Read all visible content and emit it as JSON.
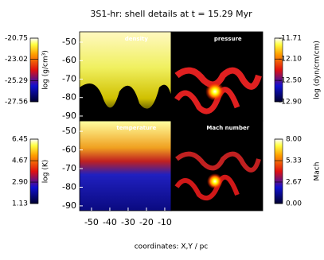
{
  "figure": {
    "title": "3S1-hr: shell details at t = 15.29 Myr",
    "x_label": "coordinates: X,Y / pc",
    "xlim": [
      -56.5,
      -6.5
    ],
    "xticks": [
      -50,
      -40,
      -30,
      -20,
      -10
    ],
    "ylim": [
      -92.6,
      -44.4
    ],
    "yticks": [
      -50,
      -60,
      -70,
      -80,
      -90
    ],
    "panels": [
      {
        "label": "density"
      },
      {
        "label": "pressure"
      },
      {
        "label": "temperature"
      },
      {
        "label": "Mach number"
      }
    ],
    "colorbars": [
      {
        "label": "log (g/cm³)",
        "ticks": [
          -20.75,
          -23.02,
          -25.29,
          -27.56
        ]
      },
      {
        "label": "log (dyn/cm/cm)",
        "ticks": [
          -11.71,
          {
            "value": -12.1,
            "label": "-12.10"
          },
          {
            "value": -12.5,
            "label": "-12.50"
          },
          {
            "value": -12.9,
            "label": "-12.90"
          }
        ]
      },
      {
        "label": "log (K)",
        "ticks": [
          6.45,
          4.67,
          {
            "value": 2.9,
            "label": "2.90"
          },
          1.13
        ]
      },
      {
        "label": "Mach",
        "ticks": [
          {
            "value": 8,
            "label": "8.00"
          },
          {
            "value": 5.33,
            "label": "5.33"
          },
          {
            "value": 2.67,
            "label": "2.67"
          },
          {
            "value": 0,
            "label": "0.00"
          }
        ]
      }
    ]
  }
}
